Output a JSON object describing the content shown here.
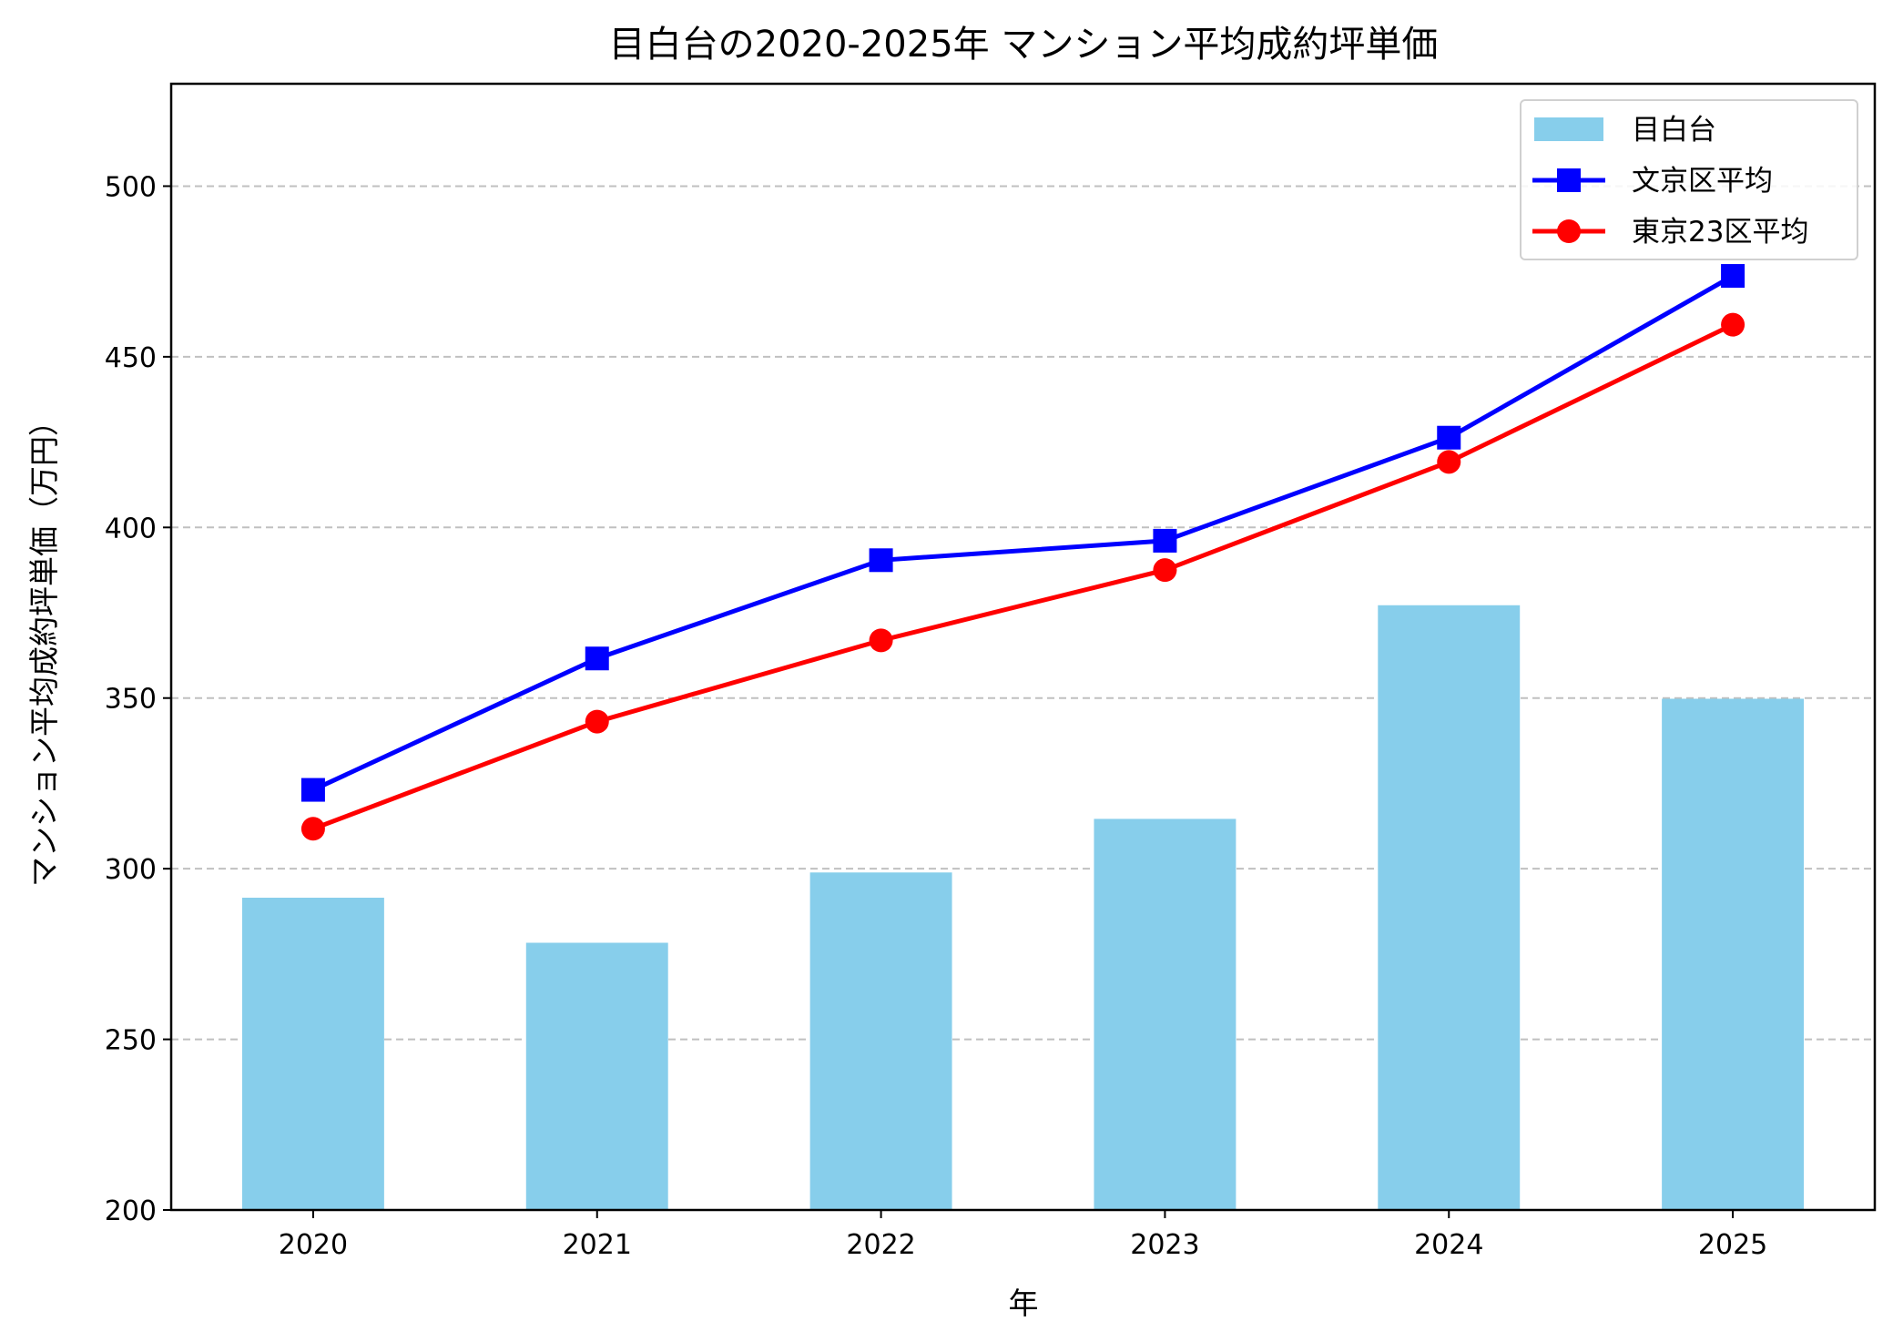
{
  "chart_data": {
    "type": "bar+line",
    "title": "目白台の2020-2025年 マンション平均成約坪単価",
    "xlabel": "年",
    "ylabel": "マンション平均成約坪単価（万円）",
    "categories": [
      "2020",
      "2021",
      "2022",
      "2023",
      "2024",
      "2025"
    ],
    "ylim": [
      200,
      530
    ],
    "yticks": [
      200,
      250,
      300,
      350,
      400,
      450,
      500
    ],
    "grid": {
      "axis": "y",
      "style": "dashed",
      "color": "#c0c0c0"
    },
    "legend_placement": "top-right",
    "series": [
      {
        "name": "目白台",
        "kind": "bar",
        "color": "#87ceeb",
        "values": [
          291.5,
          278.3,
          298.9,
          314.6,
          377.2,
          349.8
        ]
      },
      {
        "name": "文京区平均",
        "kind": "line",
        "marker": "square",
        "color": "#0000ff",
        "values": [
          323.1,
          361.6,
          390.4,
          396.1,
          426.3,
          473.7
        ]
      },
      {
        "name": "東京23区平均",
        "kind": "line",
        "marker": "circle",
        "color": "#ff0000",
        "values": [
          311.7,
          343.1,
          366.9,
          387.5,
          419.2,
          459.4
        ]
      }
    ]
  }
}
